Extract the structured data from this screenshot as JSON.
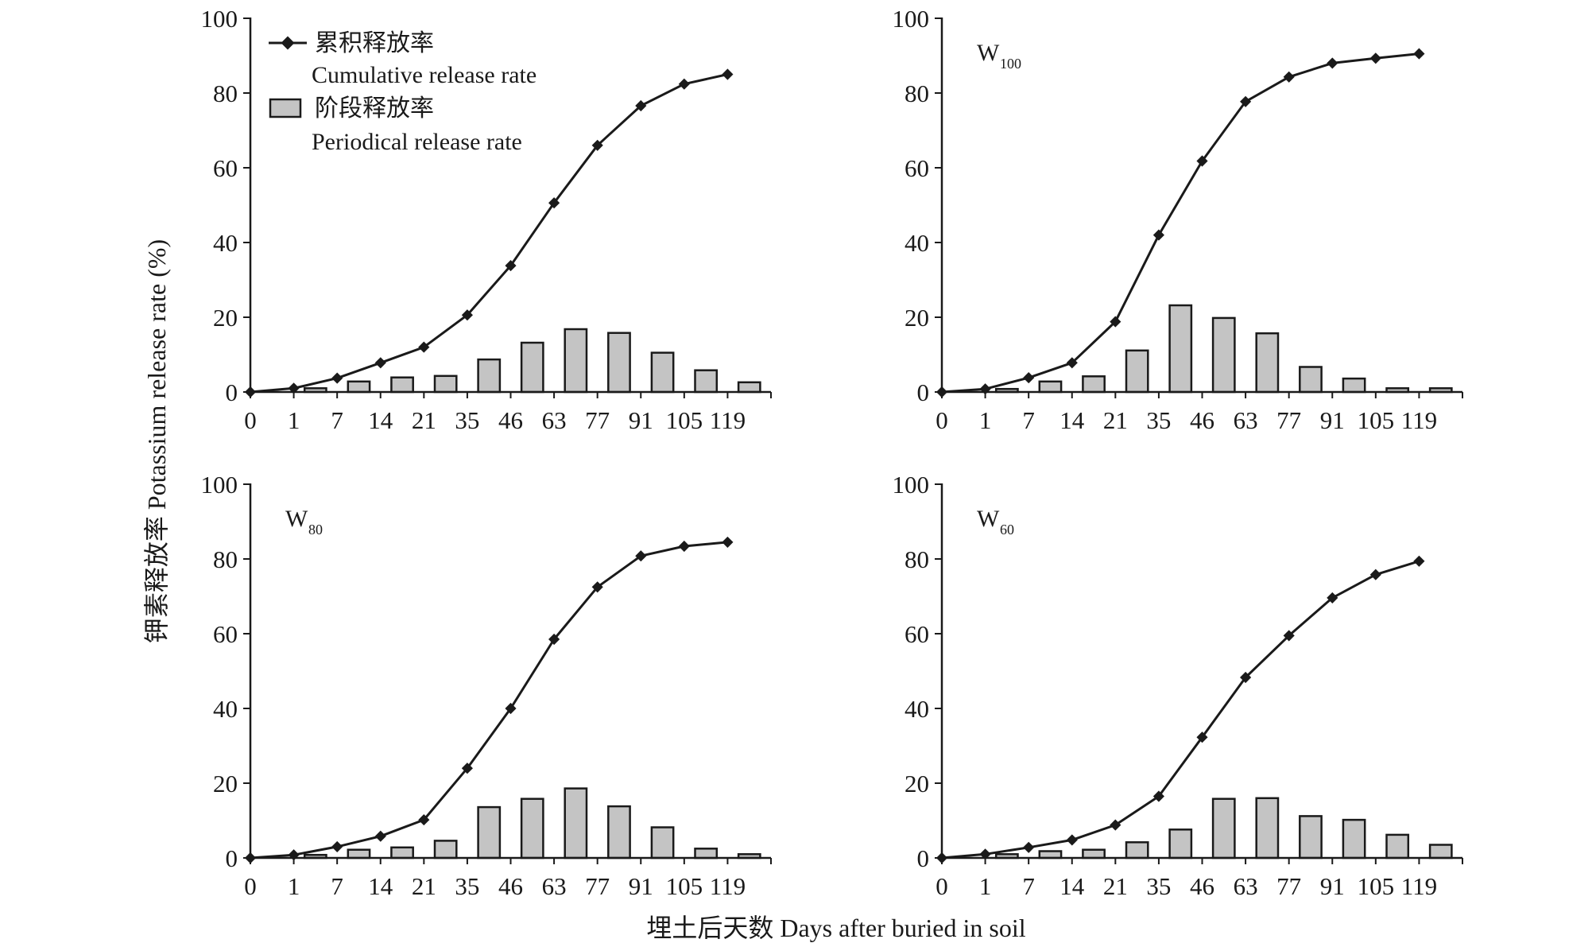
{
  "chart_data": [
    {
      "type": "bar",
      "panel": "top-left",
      "label": "",
      "label_sub": "",
      "categories": [
        "0",
        "1",
        "7",
        "14",
        "21",
        "35",
        "46",
        "63",
        "77",
        "91",
        "105",
        "119"
      ],
      "ylim": [
        0,
        100
      ],
      "yticks": [
        0,
        20,
        40,
        60,
        80,
        100
      ],
      "series": [
        {
          "name": "阶段释放率 Periodical release rate",
          "kind": "bar",
          "values": [
            null,
            1.0,
            2.8,
            3.9,
            4.3,
            8.7,
            13.2,
            16.8,
            15.8,
            10.5,
            5.8,
            2.6
          ]
        },
        {
          "name": "累积释放率 Cumulative release rate",
          "kind": "line",
          "values": [
            0,
            1.0,
            3.7,
            7.8,
            12.0,
            20.6,
            33.8,
            50.6,
            66.0,
            76.6,
            82.4,
            85.0
          ]
        }
      ]
    },
    {
      "type": "bar",
      "panel": "top-right",
      "label": "W",
      "label_sub": "100",
      "categories": [
        "0",
        "1",
        "7",
        "14",
        "21",
        "35",
        "46",
        "63",
        "77",
        "91",
        "105",
        "119"
      ],
      "ylim": [
        0,
        100
      ],
      "yticks": [
        0,
        20,
        40,
        60,
        80,
        100
      ],
      "series": [
        {
          "name": "阶段释放率 Periodical release rate",
          "kind": "bar",
          "values": [
            null,
            0.8,
            2.8,
            4.2,
            11.1,
            23.2,
            19.8,
            15.7,
            6.7,
            3.6,
            1.0,
            1.0
          ]
        },
        {
          "name": "累积释放率 Cumulative release rate",
          "kind": "line",
          "values": [
            0,
            0.8,
            3.8,
            7.8,
            18.8,
            42.0,
            61.8,
            77.7,
            84.3,
            88.0,
            89.3,
            90.5
          ]
        }
      ]
    },
    {
      "type": "bar",
      "panel": "bottom-left",
      "label": "W",
      "label_sub": "80",
      "categories": [
        "0",
        "1",
        "7",
        "14",
        "21",
        "35",
        "46",
        "63",
        "77",
        "91",
        "105",
        "119"
      ],
      "ylim": [
        0,
        100
      ],
      "yticks": [
        0,
        20,
        40,
        60,
        80,
        100
      ],
      "series": [
        {
          "name": "阶段释放率 Periodical release rate",
          "kind": "bar",
          "values": [
            null,
            0.8,
            2.2,
            2.8,
            4.6,
            13.6,
            15.8,
            18.6,
            13.8,
            8.2,
            2.5,
            1.0
          ]
        },
        {
          "name": "累积释放率 Cumulative release rate",
          "kind": "line",
          "values": [
            0,
            0.8,
            3.0,
            5.8,
            10.2,
            24.0,
            40.0,
            58.5,
            72.5,
            80.8,
            83.4,
            84.5
          ]
        }
      ]
    },
    {
      "type": "bar",
      "panel": "bottom-right",
      "label": "W",
      "label_sub": "60",
      "categories": [
        "0",
        "1",
        "7",
        "14",
        "21",
        "35",
        "46",
        "63",
        "77",
        "91",
        "105",
        "119"
      ],
      "ylim": [
        0,
        100
      ],
      "yticks": [
        0,
        20,
        40,
        60,
        80,
        100
      ],
      "series": [
        {
          "name": "阶段释放率 Periodical release rate",
          "kind": "bar",
          "values": [
            null,
            1.0,
            1.8,
            2.2,
            4.2,
            7.6,
            15.8,
            16.0,
            11.2,
            10.2,
            6.2,
            3.5
          ]
        },
        {
          "name": "累积释放率 Cumulative release rate",
          "kind": "line",
          "values": [
            0,
            1.0,
            2.8,
            4.8,
            8.8,
            16.5,
            32.3,
            48.3,
            59.5,
            69.6,
            75.8,
            79.4
          ]
        }
      ]
    }
  ],
  "axes": {
    "ylabel": "钾素释放率 Potassium release rate (%)",
    "xlabel": "埋土后天数 Days after buried in soil"
  },
  "legend": {
    "placement": "top-left panel, upper left",
    "line_label_cn": "累积释放率",
    "line_label_en": "Cumulative release rate",
    "bar_label_cn": "阶段释放率",
    "bar_label_en": "Periodical release rate"
  },
  "colors": {
    "bar_fill": "#c4c4c4",
    "stroke": "#1a1a1a"
  }
}
